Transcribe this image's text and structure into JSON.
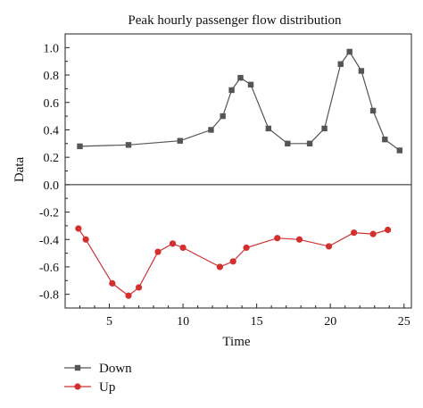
{
  "chart_data": {
    "type": "line",
    "title": "Peak hourly passenger flow distribution",
    "xlabel": "Time",
    "ylabel": "Data",
    "xlim": [
      2,
      25.5
    ],
    "ylim": [
      -0.9,
      1.1
    ],
    "x_ticks": [
      5,
      10,
      15,
      20,
      25
    ],
    "y_ticks": [
      -0.8,
      -0.6,
      -0.4,
      -0.2,
      0.0,
      0.2,
      0.4,
      0.6,
      0.8,
      1.0
    ],
    "y_tick_labels": [
      "-0.8",
      "-0.6",
      "-0.4",
      "-0.2",
      "0.0",
      "0.2",
      "0.4",
      "0.6",
      "0.8",
      "1.0"
    ],
    "zero_line": true,
    "grid": false,
    "legend_position": "bottom-left",
    "series": [
      {
        "name": "Down",
        "color": "#555555",
        "marker": "square",
        "points": [
          [
            3.0,
            0.28
          ],
          [
            6.3,
            0.29
          ],
          [
            9.8,
            0.32
          ],
          [
            11.9,
            0.4
          ],
          [
            12.7,
            0.5
          ],
          [
            13.3,
            0.69
          ],
          [
            13.9,
            0.78
          ],
          [
            14.6,
            0.73
          ],
          [
            15.8,
            0.41
          ],
          [
            17.1,
            0.3
          ],
          [
            18.6,
            0.3
          ],
          [
            19.6,
            0.41
          ],
          [
            20.7,
            0.88
          ],
          [
            21.3,
            0.97
          ],
          [
            22.1,
            0.83
          ],
          [
            22.9,
            0.54
          ],
          [
            23.7,
            0.33
          ],
          [
            24.7,
            0.25
          ]
        ]
      },
      {
        "name": "Up",
        "color": "#d32f2f",
        "marker": "circle",
        "points": [
          [
            2.9,
            -0.32
          ],
          [
            3.4,
            -0.4
          ],
          [
            5.2,
            -0.72
          ],
          [
            6.3,
            -0.81
          ],
          [
            7.0,
            -0.75
          ],
          [
            8.3,
            -0.49
          ],
          [
            9.3,
            -0.43
          ],
          [
            10.0,
            -0.46
          ],
          [
            12.5,
            -0.6
          ],
          [
            13.4,
            -0.56
          ],
          [
            14.3,
            -0.46
          ],
          [
            16.4,
            -0.39
          ],
          [
            17.9,
            -0.4
          ],
          [
            19.9,
            -0.45
          ],
          [
            21.6,
            -0.35
          ],
          [
            22.9,
            -0.36
          ],
          [
            23.9,
            -0.33
          ]
        ]
      }
    ]
  }
}
